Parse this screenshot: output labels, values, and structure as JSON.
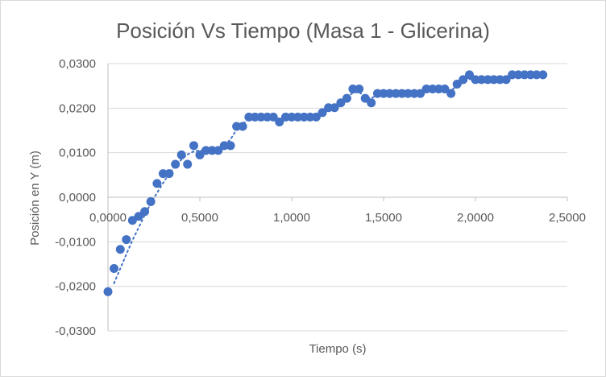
{
  "chart_data": {
    "type": "scatter",
    "title": "Posición Vs Tiempo (Masa 1 - Glicerina)",
    "xlabel": "Tiempo (s)",
    "ylabel": "Posición en Y (m)",
    "xlim": [
      0,
      2.5
    ],
    "ylim": [
      -0.03,
      0.03
    ],
    "x_ticks": [
      "0,0000",
      "0,5000",
      "1,0000",
      "1,5000",
      "2,0000",
      "2,5000"
    ],
    "y_ticks": [
      "0,0300",
      "0,0200",
      "0,0100",
      "0,0000",
      "-0,0100",
      "-0,0200",
      "-0,0300"
    ],
    "x_tick_values": [
      0,
      0.5,
      1.0,
      1.5,
      2.0,
      2.5
    ],
    "y_tick_values": [
      0.03,
      0.02,
      0.01,
      0.0,
      -0.01,
      -0.02,
      -0.03
    ],
    "grid": "horizontal",
    "marker_color": "#4472c4",
    "trendline": "dotted",
    "points": [
      [
        0.0,
        -0.0212
      ],
      [
        0.033,
        -0.016
      ],
      [
        0.067,
        -0.0117
      ],
      [
        0.1,
        -0.0095
      ],
      [
        0.133,
        -0.0052
      ],
      [
        0.167,
        -0.0043
      ],
      [
        0.2,
        -0.0032
      ],
      [
        0.233,
        -0.001
      ],
      [
        0.267,
        0.0031
      ],
      [
        0.3,
        0.0053
      ],
      [
        0.333,
        0.0053
      ],
      [
        0.367,
        0.0074
      ],
      [
        0.4,
        0.0095
      ],
      [
        0.433,
        0.0074
      ],
      [
        0.467,
        0.0116
      ],
      [
        0.5,
        0.0095
      ],
      [
        0.533,
        0.0105
      ],
      [
        0.567,
        0.0105
      ],
      [
        0.6,
        0.0105
      ],
      [
        0.633,
        0.0116
      ],
      [
        0.667,
        0.0116
      ],
      [
        0.7,
        0.0159
      ],
      [
        0.733,
        0.0159
      ],
      [
        0.767,
        0.018
      ],
      [
        0.8,
        0.018
      ],
      [
        0.833,
        0.018
      ],
      [
        0.867,
        0.018
      ],
      [
        0.9,
        0.018
      ],
      [
        0.933,
        0.0169
      ],
      [
        0.967,
        0.018
      ],
      [
        1.0,
        0.018
      ],
      [
        1.033,
        0.018
      ],
      [
        1.067,
        0.018
      ],
      [
        1.1,
        0.018
      ],
      [
        1.133,
        0.018
      ],
      [
        1.167,
        0.019
      ],
      [
        1.2,
        0.0201
      ],
      [
        1.233,
        0.0201
      ],
      [
        1.267,
        0.0212
      ],
      [
        1.3,
        0.0222
      ],
      [
        1.333,
        0.0243
      ],
      [
        1.367,
        0.0243
      ],
      [
        1.4,
        0.0222
      ],
      [
        1.433,
        0.0212
      ],
      [
        1.467,
        0.0233
      ],
      [
        1.5,
        0.0233
      ],
      [
        1.533,
        0.0233
      ],
      [
        1.567,
        0.0233
      ],
      [
        1.6,
        0.0233
      ],
      [
        1.633,
        0.0233
      ],
      [
        1.667,
        0.0233
      ],
      [
        1.7,
        0.0233
      ],
      [
        1.733,
        0.0243
      ],
      [
        1.767,
        0.0243
      ],
      [
        1.8,
        0.0243
      ],
      [
        1.833,
        0.0243
      ],
      [
        1.867,
        0.0233
      ],
      [
        1.9,
        0.0254
      ],
      [
        1.933,
        0.0264
      ],
      [
        1.967,
        0.0275
      ],
      [
        2.0,
        0.0264
      ],
      [
        2.033,
        0.0264
      ],
      [
        2.067,
        0.0264
      ],
      [
        2.1,
        0.0264
      ],
      [
        2.133,
        0.0264
      ],
      [
        2.167,
        0.0264
      ],
      [
        2.2,
        0.0275
      ],
      [
        2.233,
        0.0275
      ],
      [
        2.267,
        0.0275
      ],
      [
        2.3,
        0.0275
      ],
      [
        2.333,
        0.0275
      ],
      [
        2.367,
        0.0275
      ]
    ],
    "trend_points": [
      [
        0.033,
        -0.0193
      ],
      [
        0.067,
        -0.016
      ],
      [
        0.1,
        -0.0128
      ],
      [
        0.133,
        -0.0097
      ],
      [
        0.167,
        -0.0068
      ],
      [
        0.2,
        -0.004
      ],
      [
        0.233,
        -0.0014
      ],
      [
        0.267,
        0.001
      ],
      [
        0.3,
        0.0032
      ],
      [
        0.333,
        0.0053
      ],
      [
        0.367,
        0.007
      ],
      [
        0.4,
        0.0085
      ],
      [
        0.433,
        0.0096
      ],
      [
        0.467,
        0.0103
      ],
      [
        0.5,
        0.0105
      ],
      [
        0.533,
        0.0106
      ],
      [
        0.567,
        0.0108
      ],
      [
        0.6,
        0.011
      ],
      [
        0.633,
        0.0116
      ],
      [
        0.667,
        0.013
      ],
      [
        0.7,
        0.0152
      ],
      [
        0.733,
        0.0165
      ],
      [
        0.767,
        0.0175
      ],
      [
        0.8,
        0.018
      ],
      [
        0.867,
        0.018
      ],
      [
        0.933,
        0.0176
      ],
      [
        1.0,
        0.0178
      ],
      [
        1.067,
        0.018
      ],
      [
        1.133,
        0.0182
      ],
      [
        1.2,
        0.0196
      ],
      [
        1.267,
        0.021
      ],
      [
        1.333,
        0.0235
      ],
      [
        1.367,
        0.0236
      ],
      [
        1.4,
        0.0225
      ],
      [
        1.433,
        0.0222
      ],
      [
        1.467,
        0.023
      ],
      [
        1.6,
        0.0233
      ],
      [
        1.733,
        0.0238
      ],
      [
        1.8,
        0.0243
      ],
      [
        1.867,
        0.024
      ],
      [
        1.9,
        0.025
      ],
      [
        1.967,
        0.0265
      ],
      [
        2.1,
        0.0265
      ],
      [
        2.2,
        0.0272
      ],
      [
        2.367,
        0.0275
      ]
    ]
  }
}
